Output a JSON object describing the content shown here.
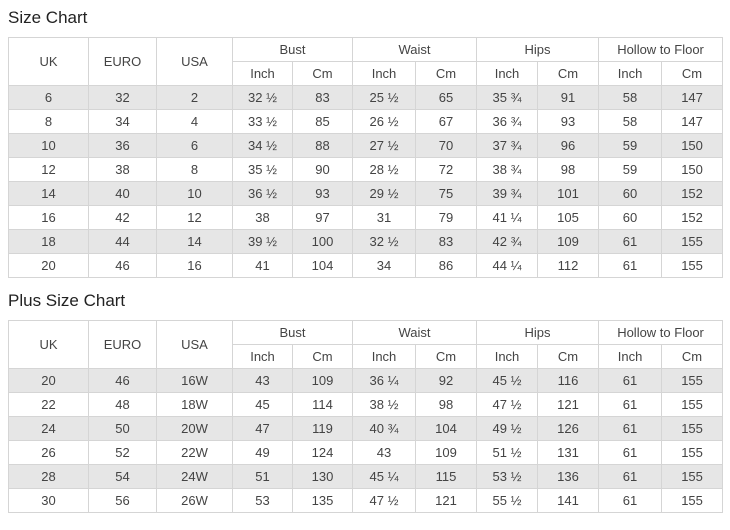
{
  "colors": {
    "stripe_row": "#e6e6e6",
    "border": "#d5d5d5",
    "cell_text": "#444444",
    "title_text": "#222222",
    "background": "#ffffff"
  },
  "chart_data": [
    {
      "type": "table",
      "title": "Size Chart",
      "plain_columns": [
        "UK",
        "EURO",
        "USA"
      ],
      "grouped_columns": [
        {
          "label": "Bust",
          "children": [
            "Inch",
            "Cm"
          ]
        },
        {
          "label": "Waist",
          "children": [
            "Inch",
            "Cm"
          ]
        },
        {
          "label": "Hips",
          "children": [
            "Inch",
            "Cm"
          ]
        },
        {
          "label": "Hollow to Floor",
          "children": [
            "Inch",
            "Cm"
          ]
        }
      ],
      "rows": [
        [
          "6",
          "32",
          "2",
          "32 ½",
          "83",
          "25 ½",
          "65",
          "35 ¾",
          "91",
          "58",
          "147"
        ],
        [
          "8",
          "34",
          "4",
          "33 ½",
          "85",
          "26 ½",
          "67",
          "36 ¾",
          "93",
          "58",
          "147"
        ],
        [
          "10",
          "36",
          "6",
          "34 ½",
          "88",
          "27 ½",
          "70",
          "37 ¾",
          "96",
          "59",
          "150"
        ],
        [
          "12",
          "38",
          "8",
          "35 ½",
          "90",
          "28 ½",
          "72",
          "38 ¾",
          "98",
          "59",
          "150"
        ],
        [
          "14",
          "40",
          "10",
          "36 ½",
          "93",
          "29 ½",
          "75",
          "39 ¾",
          "101",
          "60",
          "152"
        ],
        [
          "16",
          "42",
          "12",
          "38",
          "97",
          "31",
          "79",
          "41 ¼",
          "105",
          "60",
          "152"
        ],
        [
          "18",
          "44",
          "14",
          "39 ½",
          "100",
          "32 ½",
          "83",
          "42 ¾",
          "109",
          "61",
          "155"
        ],
        [
          "20",
          "46",
          "16",
          "41",
          "104",
          "34",
          "86",
          "44 ¼",
          "112",
          "61",
          "155"
        ]
      ]
    },
    {
      "type": "table",
      "title": "Plus Size Chart",
      "plain_columns": [
        "UK",
        "EURO",
        "USA"
      ],
      "grouped_columns": [
        {
          "label": "Bust",
          "children": [
            "Inch",
            "Cm"
          ]
        },
        {
          "label": "Waist",
          "children": [
            "Inch",
            "Cm"
          ]
        },
        {
          "label": "Hips",
          "children": [
            "Inch",
            "Cm"
          ]
        },
        {
          "label": "Hollow to Floor",
          "children": [
            "Inch",
            "Cm"
          ]
        }
      ],
      "rows": [
        [
          "20",
          "46",
          "16W",
          "43",
          "109",
          "36 ¼",
          "92",
          "45 ½",
          "116",
          "61",
          "155"
        ],
        [
          "22",
          "48",
          "18W",
          "45",
          "114",
          "38 ½",
          "98",
          "47 ½",
          "121",
          "61",
          "155"
        ],
        [
          "24",
          "50",
          "20W",
          "47",
          "119",
          "40 ¾",
          "104",
          "49 ½",
          "126",
          "61",
          "155"
        ],
        [
          "26",
          "52",
          "22W",
          "49",
          "124",
          "43",
          "109",
          "51 ½",
          "131",
          "61",
          "155"
        ],
        [
          "28",
          "54",
          "24W",
          "51",
          "130",
          "45 ¼",
          "115",
          "53 ½",
          "136",
          "61",
          "155"
        ],
        [
          "30",
          "56",
          "26W",
          "53",
          "135",
          "47 ½",
          "121",
          "55 ½",
          "141",
          "61",
          "155"
        ]
      ]
    }
  ]
}
